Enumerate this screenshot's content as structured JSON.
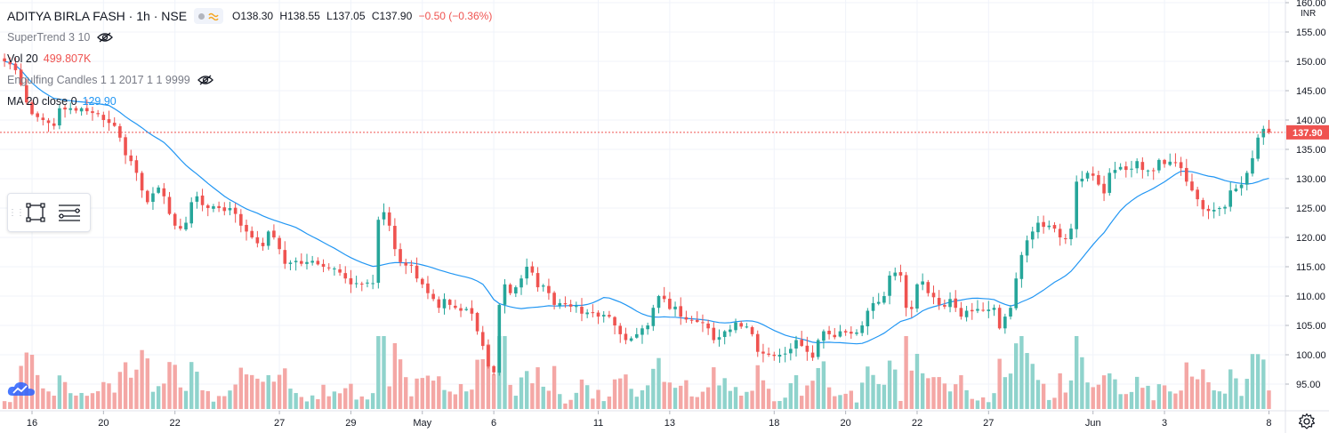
{
  "header": {
    "symbol": "ADITYA BIRLA FASH · 1h · NSE",
    "open": "O138.30",
    "high": "H138.55",
    "low": "L137.05",
    "close": "C137.90",
    "change": "−0.50 (−0.36%)"
  },
  "indicators": {
    "supertrend": "SuperTrend 3 10",
    "volume_name": "Vol 20",
    "volume_value": "499.807K",
    "engulfing": "Engulfing Candles 1 1 2017 1 1 9999",
    "ma_name": "MA 20 close 0",
    "ma_value": "129.90"
  },
  "price_axis": {
    "currency": "INR",
    "last_price_label": "137.90",
    "ticks": [
      "160.00",
      "155.00",
      "150.00",
      "145.00",
      "140.00",
      "135.00",
      "130.00",
      "125.00",
      "120.00",
      "115.00",
      "110.00",
      "105.00",
      "100.00",
      "95.00"
    ]
  },
  "time_axis": {
    "labels": [
      "16",
      "20",
      "22",
      "27",
      "29",
      "May",
      "6",
      "11",
      "13",
      "18",
      "20",
      "22",
      "27",
      "Jun",
      "3",
      "8"
    ]
  },
  "colors": {
    "up": "#26a69a",
    "down": "#ef5350",
    "up_volume": "#8fd3cc",
    "down_volume": "#f4a7a5",
    "ma": "#2196f3",
    "last_price": "#ef5350",
    "grid": "#f0f3fa"
  },
  "icons": {
    "visibility": "eye-slash-icon",
    "mode": "wave-icon",
    "rectangle": "rectangle-tool-icon",
    "lines": "lines-tool-icon",
    "logo": "tradingview-cloud-icon",
    "settings": "gear-icon"
  },
  "chart_data": {
    "type": "candlestick",
    "symbol": "ADITYA BIRLA FASH",
    "interval": "1h",
    "exchange": "NSE",
    "currency": "INR",
    "ylim": [
      92,
      160
    ],
    "yticks": [
      160,
      155,
      150,
      145,
      140,
      135,
      130,
      125,
      120,
      115,
      110,
      105,
      100,
      95
    ],
    "last_price": 137.9,
    "xticks": [
      {
        "label": "16",
        "index": 5
      },
      {
        "label": "20",
        "index": 18
      },
      {
        "label": "22",
        "index": 31
      },
      {
        "label": "27",
        "index": 50
      },
      {
        "label": "29",
        "index": 63
      },
      {
        "label": "May",
        "index": 76
      },
      {
        "label": "6",
        "index": 89
      },
      {
        "label": "11",
        "index": 108
      },
      {
        "label": "13",
        "index": 121
      },
      {
        "label": "18",
        "index": 140
      },
      {
        "label": "20",
        "index": 153
      },
      {
        "label": "22",
        "index": 166
      },
      {
        "label": "27",
        "index": 179
      },
      {
        "label": "Jun",
        "index": 198
      },
      {
        "label": "3",
        "index": 211
      },
      {
        "label": "8",
        "index": 230
      }
    ],
    "close": [
      150,
      149.5,
      148.5,
      146,
      143,
      141,
      140.5,
      140,
      139.5,
      139,
      142,
      141.8,
      142,
      141.6,
      142,
      141.5,
      141.2,
      141,
      140,
      139.5,
      139,
      137,
      134,
      133,
      131,
      128,
      126,
      127.5,
      128.5,
      127,
      124,
      122,
      121.5,
      122.5,
      126,
      127,
      125.5,
      125,
      125.3,
      125,
      124.5,
      125,
      124,
      122,
      121,
      120,
      119,
      118.5,
      121,
      120,
      118,
      115.5,
      115.7,
      116,
      115.5,
      115.8,
      116,
      115.4,
      115,
      114.8,
      114.7,
      114,
      113,
      112,
      112.2,
      112,
      112.3,
      112.2,
      123,
      124.3,
      122,
      118,
      115.8,
      115.2,
      115.3,
      113,
      112,
      110.5,
      109.5,
      108,
      109.5,
      108.5,
      108,
      107.5,
      107.8,
      107,
      104,
      101.5,
      98,
      97,
      108.5,
      112,
      110.5,
      111.5,
      113,
      115,
      114,
      111.5,
      111.8,
      110.5,
      108.5,
      108.8,
      108.6,
      108.2,
      108.3,
      107,
      107.2,
      107.1,
      106.5,
      106.8,
      106.5,
      105,
      103.5,
      102.5,
      102.8,
      103.5,
      104.5,
      105,
      108,
      110,
      109.5,
      107.8,
      108.2,
      106.5,
      106,
      105.8,
      105.6,
      105.4,
      104.5,
      102.5,
      103,
      104,
      104.3,
      105.5,
      104.8,
      104.8,
      103.5,
      100.5,
      100.2,
      100,
      99.8,
      100,
      100.2,
      101,
      102.5,
      101.5,
      100.5,
      99.5,
      102.5,
      104,
      103.5,
      103,
      104,
      103.8,
      103.6,
      103.8,
      105,
      107.5,
      108.8,
      109,
      110,
      113.5,
      114,
      113.5,
      108,
      107.8,
      112,
      112.5,
      110.5,
      109.8,
      108.5,
      108.2,
      109.5,
      108,
      106.5,
      107.5,
      107.4,
      107.8,
      107.5,
      107.7,
      108,
      104.5,
      106.5,
      108,
      113,
      117,
      119.5,
      121,
      122.5,
      121.8,
      122,
      121.5,
      120,
      119.8,
      121.5,
      129.5,
      130,
      131,
      130.5,
      129,
      127.5,
      131,
      131.5,
      132,
      131.5,
      131.7,
      133,
      131.5,
      131.4,
      131.3,
      133.2,
      132.5,
      132.9,
      132.7,
      131.8,
      129.5,
      128,
      126.5,
      124.8,
      124.5,
      124.7,
      125,
      125.2,
      128,
      128.3,
      129,
      131,
      133.5,
      137,
      138.5,
      137.9
    ]
  }
}
